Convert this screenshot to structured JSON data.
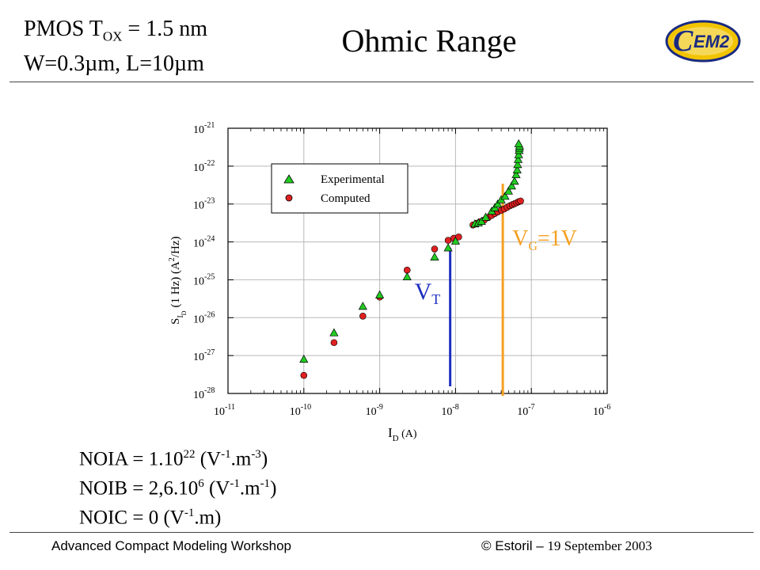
{
  "header": {
    "device_line_prefix": "PMOS T",
    "device_line_sub": "OX",
    "device_line_suffix": " = 1.5 nm",
    "geometry_line": "W=0.3µm, L=10µm",
    "title": "Ohmic Range",
    "logo_text": "EM2",
    "logo_letter": "C"
  },
  "chart_data": {
    "type": "scatter",
    "xlabel": "I",
    "xlabel_sub": "D",
    "xlabel_unit": " (A)",
    "ylabel": "S",
    "ylabel_sub": "I",
    "ylabel_subsub": "D",
    "ylabel_unit": "(1 Hz) (A",
    "ylabel_sup": "2",
    "ylabel_tail": "/Hz)",
    "x_scale": "log",
    "y_scale": "log",
    "xlim": [
      1e-11,
      1e-06
    ],
    "ylim": [
      1e-28,
      1e-21
    ],
    "x_tick_exponents": [
      -11,
      -10,
      -9,
      -8,
      -7,
      -6
    ],
    "y_tick_exponents": [
      -28,
      -27,
      -26,
      -25,
      -24,
      -23,
      -22,
      -21
    ],
    "tick_base": "10",
    "grid": true,
    "legend_position": "top-left",
    "series": [
      {
        "name": "Experimental",
        "marker": "triangle",
        "color": "#22cc22",
        "x": [
          1e-10,
          2.5e-10,
          6e-10,
          1e-09,
          2.3e-09,
          5.3e-09,
          8e-09,
          1e-08,
          1.8e-08,
          2e-08,
          2.2e-08,
          2.5e-08,
          3e-08,
          3.3e-08,
          3.6e-08,
          4e-08,
          4.5e-08,
          5e-08,
          5.5e-08,
          6e-08,
          6.3e-08,
          6.5e-08,
          6.6e-08,
          6.7e-08,
          6.8e-08,
          6.9e-08,
          6.95e-08,
          7e-08,
          6.8e-08
        ],
        "y": [
          8e-28,
          4e-27,
          2e-26,
          4e-26,
          1.2e-25,
          4e-25,
          7e-25,
          1.05e-24,
          3e-24,
          3.2e-24,
          3.5e-24,
          4.5e-24,
          6.5e-24,
          8e-24,
          1e-23,
          1.3e-23,
          1.6e-23,
          2.2e-23,
          3e-23,
          4e-23,
          6e-23,
          8e-23,
          1.1e-22,
          1.5e-22,
          2e-22,
          2.6e-22,
          3e-22,
          3.4e-22,
          3.9e-22
        ]
      },
      {
        "name": "Computed",
        "marker": "circle",
        "color": "#e02020",
        "x": [
          1e-10,
          2.5e-10,
          6e-10,
          1e-09,
          2.3e-09,
          5.3e-09,
          8e-09,
          9.5e-09,
          1.1e-08,
          1.7e-08,
          1.9e-08,
          2.1e-08,
          2.4e-08,
          2.7e-08,
          3e-08,
          3.3e-08,
          3.6e-08,
          4e-08,
          4.4e-08,
          4.8e-08,
          5.2e-08,
          5.6e-08,
          6e-08,
          6.4e-08,
          6.8e-08,
          7.2e-08
        ],
        "y": [
          3e-28,
          2.2e-27,
          1.1e-26,
          3.5e-26,
          1.8e-25,
          6.5e-25,
          1.1e-24,
          1.25e-24,
          1.35e-24,
          2.8e-24,
          3.1e-24,
          3.4e-24,
          3.8e-24,
          4.4e-24,
          5e-24,
          5.6e-24,
          6.2e-24,
          6.8e-24,
          7.4e-24,
          8.2e-24,
          9e-24,
          9.6e-24,
          1.02e-23,
          1.08e-23,
          1.15e-23,
          1.2e-23
        ]
      }
    ],
    "annotations": [
      {
        "label": "V",
        "label_sub": "T",
        "x": 8.5e-09,
        "color": "#1f2fbf"
      },
      {
        "label": "V",
        "label_sub": "G",
        "label_suffix": "=1V",
        "x": 4.2e-08,
        "color": "#f5a020"
      }
    ]
  },
  "parameters": [
    {
      "label": "NOIA = 1.10",
      "exp": "22",
      "unit_a": " (V",
      "unit_a_exp": "-1",
      "unit_b": ".m",
      "unit_b_exp": "-3",
      "close": ")"
    },
    {
      "label": "NOIB = 2,6.10",
      "exp": "6",
      "unit_a": " (V",
      "unit_a_exp": "-1",
      "unit_b": ".m",
      "unit_b_exp": "-1",
      "close": ")"
    },
    {
      "label": "NOIC = 0 (V",
      "exp": "-1",
      "unit_a": ".m)",
      "unit_a_exp": "",
      "unit_b": "",
      "unit_b_exp": "",
      "close": ""
    }
  ],
  "footer": {
    "left": "Advanced Compact Modeling Workshop",
    "right_sans": "© Estoril – ",
    "right_serif": "19 September 2003"
  }
}
